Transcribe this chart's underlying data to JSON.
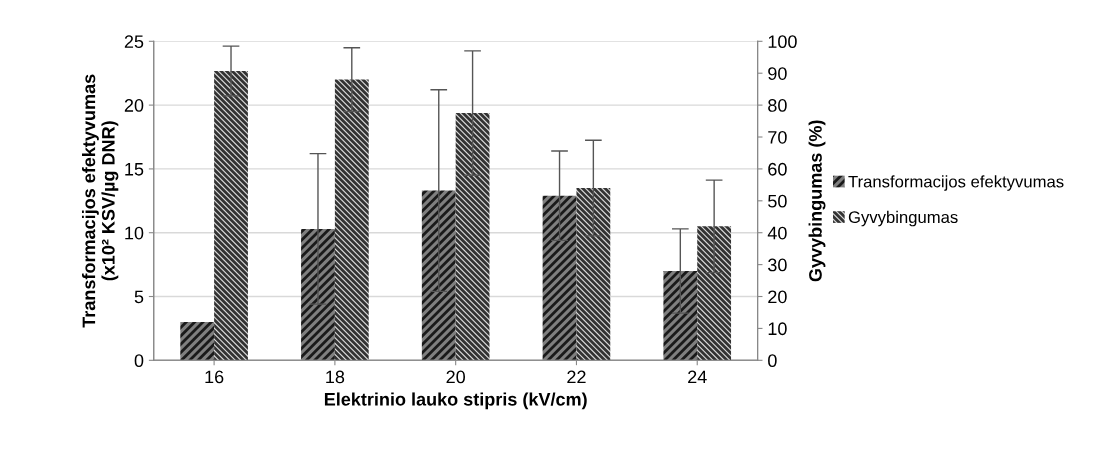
{
  "chart_data": {
    "type": "bar",
    "xlabel": "Elektrinio lauko stipris (kV/cm)",
    "ylabel": "Transformacijos efektyvumas\n(x10² KSV/µg DNR)",
    "y2label": "Gyvybingumas (%)",
    "categories": [
      "16",
      "18",
      "20",
      "22",
      "24"
    ],
    "series": [
      {
        "name": "Transformacijos efektyvumas",
        "color": "#7f7f7f",
        "values": [
          3.0,
          10.3,
          13.3,
          12.9,
          7.0
        ],
        "errors": [
          null,
          5.9,
          7.9,
          3.5,
          3.3
        ]
      },
      {
        "name": "Gyvybingumas",
        "color": "#d9d9d9",
        "axis": "y2",
        "values": [
          90.7,
          88,
          77.5,
          54,
          42
        ],
        "errors": [
          7.8,
          10,
          19.5,
          15,
          14.5
        ]
      }
    ],
    "ylim": [
      0,
      25
    ],
    "yticks": [
      0,
      5,
      10,
      15,
      20,
      25
    ],
    "y2lim": [
      0,
      100
    ],
    "y2ticks": [
      0,
      10,
      20,
      30,
      40,
      50,
      60,
      70,
      80,
      90,
      100
    ],
    "grid": "y",
    "legend": "right"
  }
}
